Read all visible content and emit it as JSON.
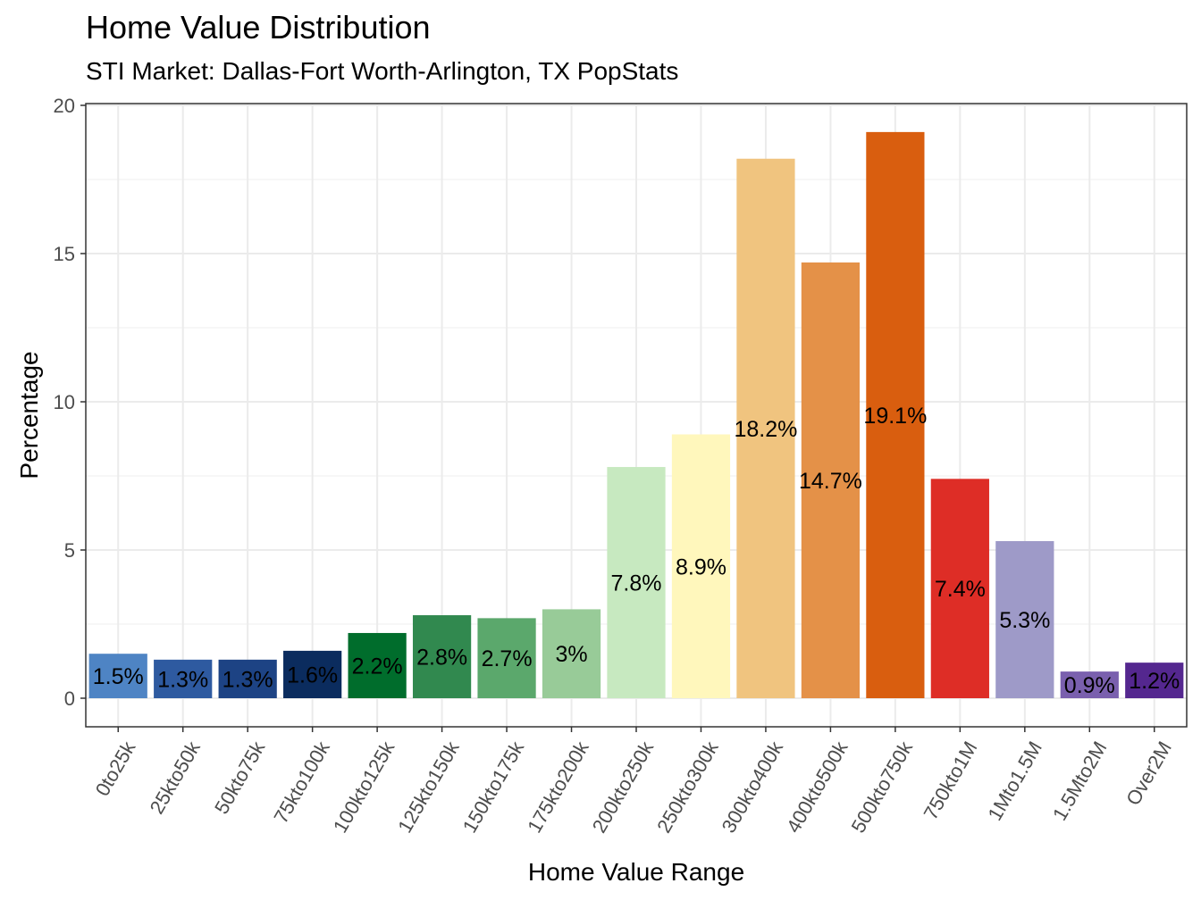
{
  "chart_data": {
    "type": "bar",
    "title": "Home Value Distribution",
    "subtitle": "STI Market: Dallas-Fort Worth-Arlington, TX PopStats",
    "xlabel": "Home Value Range",
    "ylabel": "Percentage",
    "ylim": [
      0,
      20
    ],
    "yticks": [
      0,
      5,
      10,
      15,
      20
    ],
    "grid": true,
    "legend": "none",
    "categories": [
      "0to25k",
      "25kto50k",
      "50kto75k",
      "75kto100k",
      "100kto125k",
      "125kto150k",
      "150kto175k",
      "175kto200k",
      "200kto250k",
      "250kto300k",
      "300kto400k",
      "400kto500k",
      "500kto750k",
      "750kto1M",
      "1Mto1.5M",
      "1.5Mto2M",
      "Over2M"
    ],
    "values": [
      1.5,
      1.3,
      1.3,
      1.6,
      2.2,
      2.8,
      2.7,
      3.0,
      7.8,
      8.9,
      18.2,
      14.7,
      19.1,
      7.4,
      5.3,
      0.9,
      1.2
    ],
    "labels": [
      "1.5%",
      "1.3%",
      "1.3%",
      "1.6%",
      "2.2%",
      "2.8%",
      "2.7%",
      "3%",
      "7.8%",
      "8.9%",
      "18.2%",
      "14.7%",
      "19.1%",
      "7.4%",
      "5.3%",
      "0.9%",
      "1.2%"
    ],
    "colors": [
      "#4E84C4",
      "#2E5AA0",
      "#1D4384",
      "#0B2C5E",
      "#006D2C",
      "#31894F",
      "#5BA86C",
      "#98CB98",
      "#C7E9C0",
      "#FFF7BC",
      "#F0C47F",
      "#E49148",
      "#D95E0F",
      "#DE2D26",
      "#9E9AC8",
      "#7A60AE",
      "#54278F"
    ]
  }
}
